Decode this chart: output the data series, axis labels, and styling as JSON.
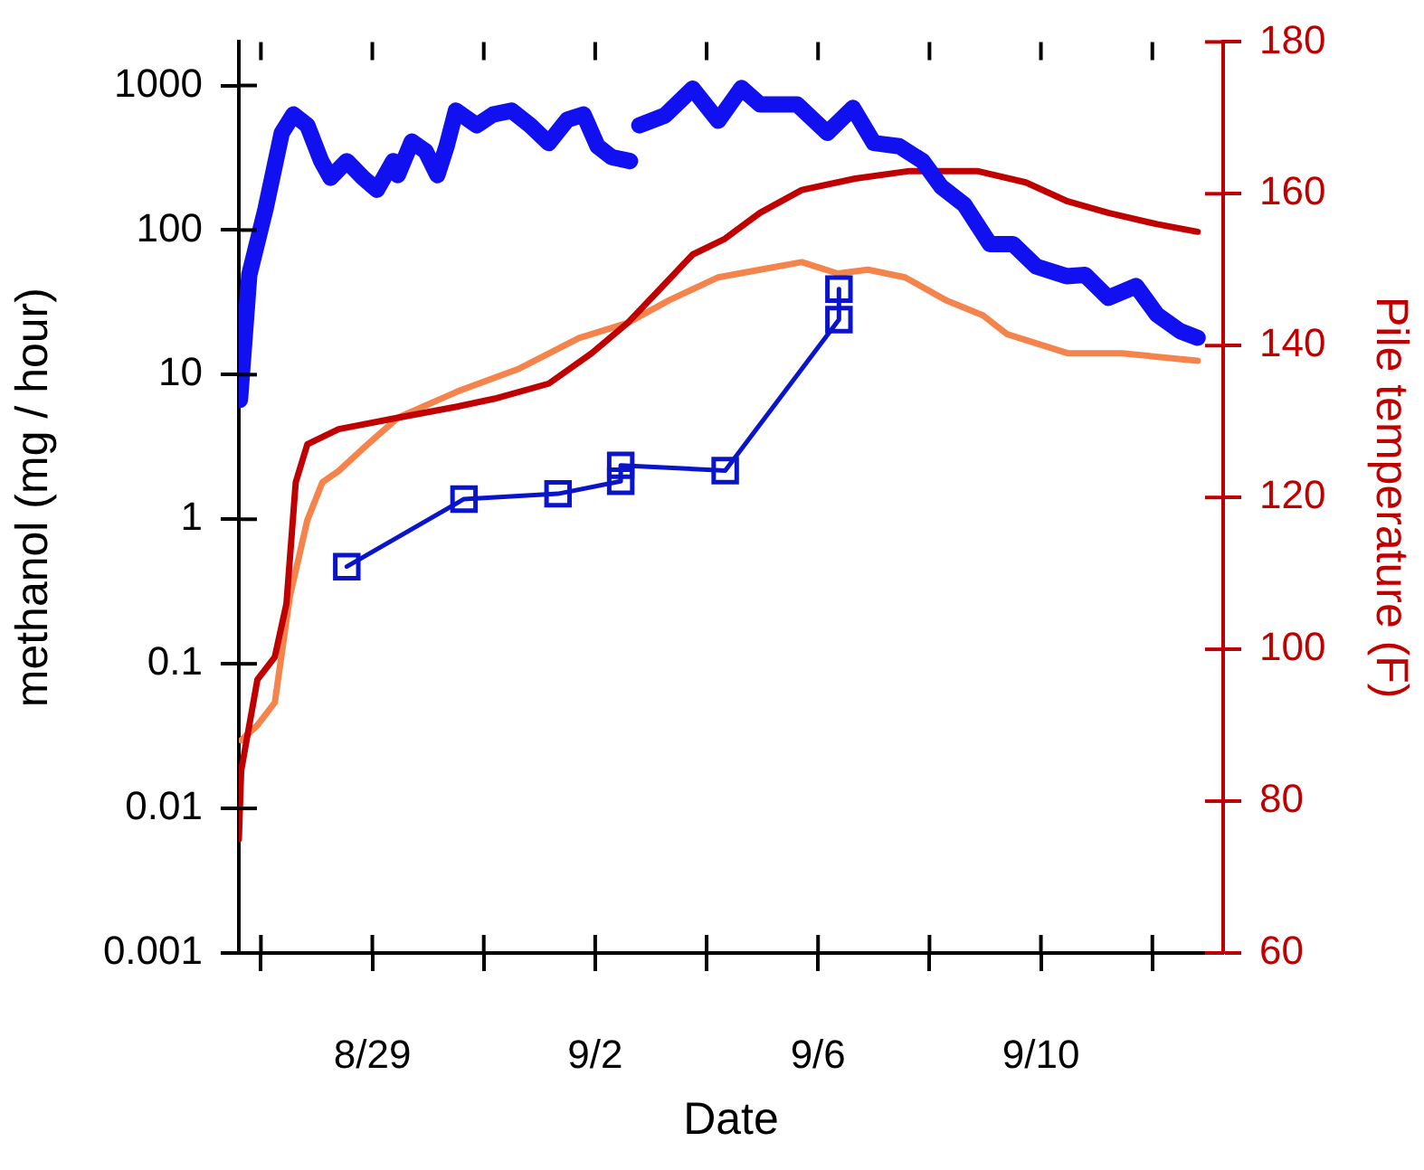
{
  "chart_data": {
    "type": "line",
    "xlabel": "Date",
    "ylabel": "methanol (mg / hour)",
    "y2label": "Pile temperature (F)",
    "log": "y",
    "grid": false,
    "legend": false,
    "xlim": [
      "--08-26T14:30",
      "--09-13T06:30"
    ],
    "xticks": [
      {
        "value": "--08-27",
        "label": null
      },
      {
        "value": "--08-29",
        "label": "8/29"
      },
      {
        "value": "--08-31",
        "label": null
      },
      {
        "value": "--09-02",
        "label": "9/2"
      },
      {
        "value": "--09-04",
        "label": null
      },
      {
        "value": "--09-06",
        "label": "9/6"
      },
      {
        "value": "--09-08",
        "label": null
      },
      {
        "value": "--09-10",
        "label": "9/10"
      },
      {
        "value": "--09-12",
        "label": null
      }
    ],
    "ylim": [
      0.001,
      2000
    ],
    "yticks": [
      0.001,
      0.01,
      0.1,
      1,
      10,
      100,
      1000
    ],
    "y2lim": [
      60,
      180
    ],
    "y2ticks": [
      60,
      80,
      100,
      120,
      140,
      160,
      180
    ],
    "series": [
      {
        "color": "#1010f0",
        "x": [
          "--08-26T15:00",
          "--08-26T19:00",
          "--08-27T02:00",
          "--08-27T09:00",
          "--08-27T14:00",
          "--08-27T20:00",
          "--08-28T02:00",
          "--08-28T06:00",
          "--08-28T13:00",
          "--08-28T20:00",
          "--08-29T02:00",
          "--08-29T09:00",
          "--08-29T11:00",
          "--08-29T17:00",
          "--08-29T23:00",
          "--08-30T04:00",
          "--08-30T08:00",
          "--08-30T12:00",
          "--08-30T21:00",
          "--08-31T04:00",
          "--08-31T12:00",
          "--08-31T20:00",
          "--09-01T04:00",
          "--09-01T12:00",
          "--09-01T19:00",
          "--09-02T01:00",
          "--09-02T07:00",
          "--09-02T15:00",
          "--09-02T17:00",
          "--09-02T19:00",
          "--09-03T06:00",
          "--09-03T18:00",
          "--09-04T05:00",
          "--09-04T15:00",
          "--09-04T23:00",
          "--09-05T15:00",
          "--09-06T04:00",
          "--09-06T15:00",
          "--09-07T00:00",
          "--09-07T11:00",
          "--09-07T21:00",
          "--09-08T05:00",
          "--09-08T15:00",
          "--09-09T02:00",
          "--09-09T12:00",
          "--09-09T22:00",
          "--09-10T11:00",
          "--09-10T19:00",
          "--09-11T05:00",
          "--09-11T17:00",
          "--09-12T02:00",
          "--09-12T12:00",
          "--09-12T19:30"
        ],
        "values": [
          6.7,
          49,
          140,
          470,
          630,
          530,
          300,
          230,
          300,
          230,
          190,
          300,
          240,
          410,
          350,
          240,
          380,
          670,
          530,
          630,
          670,
          530,
          400,
          580,
          630,
          380,
          320,
          300,
          null,
          530,
          620,
          950,
          570,
          960,
          740,
          740,
          470,
          700,
          400,
          380,
          300,
          200,
          150,
          80,
          80,
          56,
          48,
          49,
          34,
          41,
          26,
          20,
          18
        ]
      },
      {
        "color": "#0a14c8",
        "marker": "square",
        "x": [
          "--08-28T13:00",
          "--08-30T15:30",
          "--09-01T08:00",
          "--09-02T11:00",
          "--09-02T11:00",
          "--09-04T08:00",
          "--09-06T09:00",
          "--09-06T09:00"
        ],
        "values": [
          0.47,
          1.38,
          1.5,
          1.83,
          2.36,
          2.17,
          24,
          39
        ]
      },
      {
        "axis": "y2",
        "color": "#c00000",
        "x": [
          "--08-26T14:30",
          "--08-26T15:30",
          "--08-26T22:30",
          "--08-27T06:00",
          "--08-27T11:00",
          "--08-27T15:00",
          "--08-27T20:00",
          "--08-28T09:30",
          "--08-29T11:00",
          "--08-30T13:00",
          "--08-31T04:30",
          "--09-01T04:00",
          "--09-01T22:30",
          "--09-02T14:00",
          "--09-03T02:30",
          "--09-03T18:00",
          "--09-04T07:30",
          "--09-04T23:00",
          "--09-05T17:00",
          "--09-06T16:00",
          "--09-07T15:30",
          "--09-08T20:30",
          "--09-09T17:30",
          "--09-10T11:30",
          "--09-11T05:00",
          "--09-12T02:00",
          "--09-12T19:30"
        ],
        "values": [
          75,
          84,
          96,
          99,
          106,
          122,
          127,
          129,
          130.5,
          132,
          133,
          135,
          139,
          143,
          147,
          152,
          154,
          157.5,
          160.5,
          162,
          163,
          163,
          161.5,
          159,
          157.5,
          156,
          155
        ]
      },
      {
        "axis": "y2",
        "color": "#f4844c",
        "x": [
          "--08-26T15:30",
          "--08-26T22:30",
          "--08-27T06:00",
          "--08-27T12:30",
          "--08-27T20:00",
          "--08-28T02:30",
          "--08-28T09:30",
          "--08-28T22:00",
          "--08-29T11:00",
          "--08-30T13:00",
          "--08-31T15:30",
          "--09-01T17:00",
          "--09-02T14:00",
          "--09-03T08:00",
          "--09-04T05:00",
          "--09-04T23:00",
          "--09-05T17:00",
          "--09-06T08:30",
          "--09-06T21:30",
          "--09-07T13:30",
          "--09-08T07:00",
          "--09-08T23:00",
          "--09-09T09:30",
          "--09-10T11:30",
          "--09-11T11:00",
          "--09-12T19:30"
        ],
        "values": [
          88,
          90,
          93,
          107,
          117,
          122,
          123.5,
          127,
          130.5,
          134,
          137,
          141,
          143,
          146,
          149,
          150,
          151,
          149.5,
          150,
          149,
          146,
          144,
          141.5,
          139,
          139,
          138
        ]
      }
    ]
  }
}
